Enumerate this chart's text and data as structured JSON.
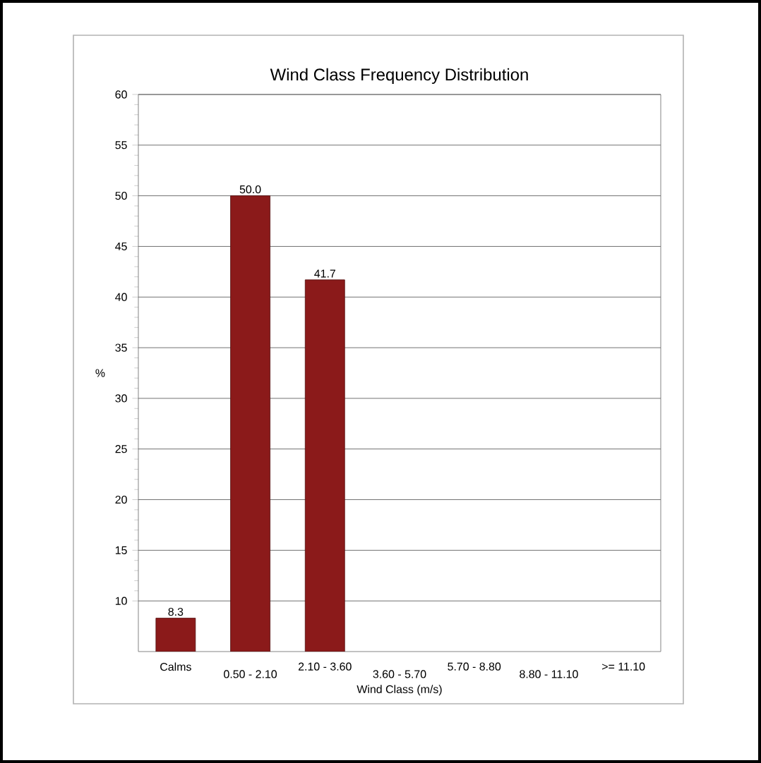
{
  "chart_data": {
    "type": "bar",
    "title": "Wind Class Frequency Distribution",
    "xlabel": "Wind Class (m/s)",
    "ylabel": "%",
    "categories": [
      "Calms",
      "0.50 - 2.10",
      "2.10 - 3.60",
      "3.60 - 5.70",
      "5.70 - 8.80",
      "8.80 - 11.10",
      ">= 11.10"
    ],
    "values": [
      8.3,
      50.0,
      41.7,
      null,
      null,
      null,
      null
    ],
    "color": "#8b1a1a",
    "ylim": [
      5,
      60
    ],
    "yticks": [
      10,
      15,
      20,
      25,
      30,
      35,
      40,
      45,
      50,
      55,
      60
    ],
    "value_labels": [
      "8.3",
      "50.0",
      "41.7",
      null,
      null,
      null,
      null
    ],
    "grid": "y"
  }
}
